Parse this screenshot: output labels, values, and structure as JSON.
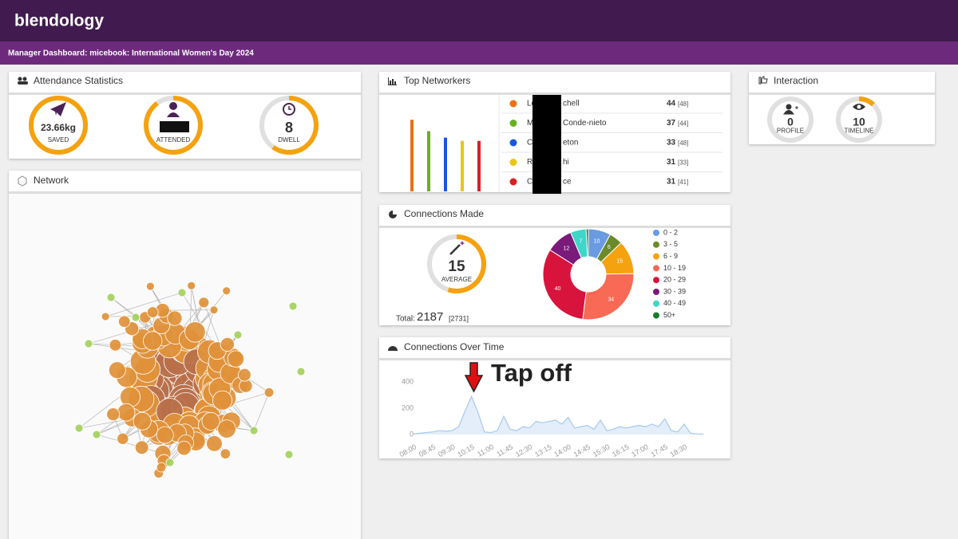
{
  "header": {
    "logo": "blendology",
    "subtitle": "Manager Dashboard: micebook: International Women's Day 2024"
  },
  "attendance": {
    "title": "Attendance Statistics",
    "gauges": [
      {
        "value": "23.66kg",
        "label": "SAVED",
        "fill": 1.0
      },
      {
        "label": "ATTENDED",
        "fill": 0.9
      },
      {
        "value": 8,
        "label": "DWELL",
        "fill": 0.6
      }
    ]
  },
  "network": {
    "title": "Network"
  },
  "top_networkers": {
    "title": "Top Networkers",
    "names": [
      [
        "Le",
        "chell"
      ],
      [
        "M",
        "Conde-nieto"
      ],
      [
        "C",
        "eton"
      ],
      [
        "R",
        "hi"
      ],
      [
        "C",
        "ce"
      ]
    ],
    "values": [
      44,
      37,
      33,
      31,
      31
    ],
    "totals": [
      48,
      44,
      48,
      33,
      41
    ],
    "total_labels": [
      "[48]",
      "[44]",
      "[48]",
      "[33]",
      "[41]"
    ],
    "colors": [
      "#e8711a",
      "#6ab023",
      "#1a56db",
      "#e8c515",
      "#d92020"
    ],
    "ylim": [
      0,
      48
    ]
  },
  "interaction": {
    "title": "Interaction",
    "gauges": [
      {
        "value": 0,
        "label": "PROFILE",
        "fill": 0
      },
      {
        "value": 10,
        "label": "TIMELINE",
        "fill": 0.12
      }
    ]
  },
  "connections_made": {
    "title": "Connections Made",
    "average": 15,
    "average_label": "AVERAGE",
    "average_fill": 0.55,
    "total_label": "Total:",
    "total": 2187,
    "overall": 2731,
    "overall_label": "[2731]",
    "chart_data": {
      "type": "pie",
      "categories": [
        "0 - 2",
        "3 - 5",
        "6 - 9",
        "10 - 19",
        "20 - 29",
        "30 - 39",
        "40 - 49",
        "50+"
      ],
      "values": [
        10,
        6,
        15,
        34,
        40,
        12,
        7,
        1
      ],
      "value_labels": [
        "10",
        "6",
        "15",
        "34",
        "40",
        "12",
        "7",
        null
      ],
      "colors": [
        "#6a9ae0",
        "#6b8a2a",
        "#f5a20f",
        "#f86a55",
        "#d8143c",
        "#7a1a7a",
        "#3dd6c8",
        "#1a7a2a"
      ]
    }
  },
  "connections_over_time": {
    "title": "Connections Over Time",
    "annotation": "Tap off",
    "chart_data": {
      "type": "area",
      "categories": [
        "08:00",
        null,
        null,
        "08:45",
        null,
        null,
        "09:30",
        null,
        null,
        "10:15",
        null,
        null,
        "11:00",
        null,
        null,
        "11:45",
        null,
        null,
        "12:30",
        null,
        null,
        "13:15",
        null,
        null,
        "14:00",
        null,
        null,
        "14:45",
        null,
        null,
        "15:30",
        null,
        null,
        "16:15",
        null,
        null,
        "17:00",
        null,
        null,
        "17:45",
        null,
        null,
        "18:30",
        null,
        null,
        null
      ],
      "values": [
        5,
        10,
        15,
        20,
        30,
        25,
        30,
        60,
        180,
        290,
        170,
        20,
        15,
        30,
        140,
        40,
        30,
        60,
        50,
        100,
        90,
        100,
        110,
        80,
        130,
        50,
        60,
        70,
        40,
        110,
        30,
        40,
        60,
        50,
        60,
        70,
        60,
        80,
        60,
        120,
        30,
        20,
        80,
        10,
        5,
        3
      ],
      "ylim": [
        0,
        450
      ],
      "yticks": [
        0,
        200,
        400
      ],
      "grid": false,
      "color": "#a8c9ee"
    }
  }
}
